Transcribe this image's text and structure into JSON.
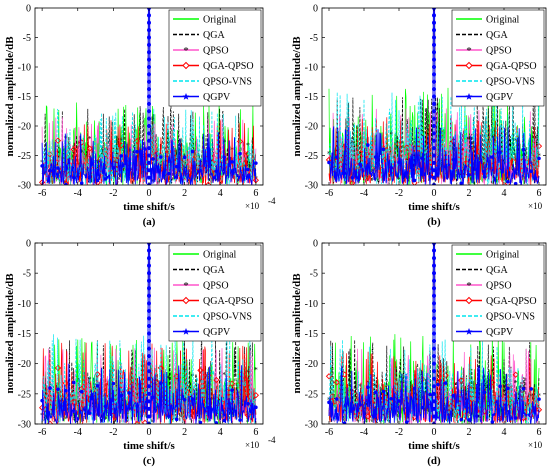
{
  "colors": {
    "Original": "#00ff00",
    "QGA": "#000000",
    "QPSO": "#ff55cc",
    "QGA-QPSO": "#ff0000",
    "QPSO-VNS": "#00e5ee",
    "QGPV": "#0000ff"
  },
  "chart_data": [
    {
      "type": "line",
      "subplot_label": "(a)",
      "xlabel": "time shift/s",
      "ylabel": "normalized amplitude/dB",
      "x_exponent_label": "×10",
      "x_exponent_power": "-4",
      "xlim": [
        -6.4,
        6.4
      ],
      "ylim": [
        -30,
        0
      ],
      "xticks": [
        -6,
        -4,
        -2,
        0,
        2,
        4,
        6
      ],
      "xticklabels": [
        "-6",
        "-4",
        "-2",
        "0",
        "2",
        "4",
        "6"
      ],
      "yticks": [
        -30,
        -25,
        -20,
        -15,
        -10,
        -5,
        0
      ],
      "yticklabels": [
        "-30",
        "-25",
        "-20",
        "-15",
        "-10",
        "-5",
        "0"
      ],
      "grid": false,
      "legend_position": "top-right",
      "series": [
        {
          "name": "Original",
          "peak": 0,
          "sidelobe_max": -16.0
        },
        {
          "name": "QGA",
          "peak": 0,
          "sidelobe_max": -16.5
        },
        {
          "name": "QPSO",
          "peak": 0,
          "sidelobe_max": -18.5
        },
        {
          "name": "QGA-QPSO",
          "peak": 0,
          "sidelobe_max": -19.0
        },
        {
          "name": "QPSO-VNS",
          "peak": 0,
          "sidelobe_max": -17.0
        },
        {
          "name": "QGPV",
          "peak": 0,
          "sidelobe_max": -21.0
        }
      ]
    },
    {
      "type": "line",
      "subplot_label": "(b)",
      "xlabel": "time shift/s",
      "ylabel": "normalized amplitude/dB",
      "x_exponent_label": "×10",
      "x_exponent_power": "-4",
      "xlim": [
        -6.4,
        6.4
      ],
      "ylim": [
        -30,
        0
      ],
      "xticks": [
        -6,
        -4,
        -2,
        0,
        2,
        4,
        6
      ],
      "xticklabels": [
        "-6",
        "-4",
        "-2",
        "0",
        "2",
        "4",
        "6"
      ],
      "yticks": [
        -30,
        -25,
        -20,
        -15,
        -10,
        -5,
        0
      ],
      "yticklabels": [
        "-30",
        "-25",
        "-20",
        "-15",
        "-10",
        "-5",
        "0"
      ],
      "grid": false,
      "legend_position": "top-right",
      "series": [
        {
          "name": "Original",
          "peak": 0,
          "sidelobe_max": -13.5
        },
        {
          "name": "QGA",
          "peak": 0,
          "sidelobe_max": -15.0
        },
        {
          "name": "QPSO",
          "peak": 0,
          "sidelobe_max": -17.0
        },
        {
          "name": "QGA-QPSO",
          "peak": 0,
          "sidelobe_max": -18.5
        },
        {
          "name": "QPSO-VNS",
          "peak": 0,
          "sidelobe_max": -14.0
        },
        {
          "name": "QGPV",
          "peak": 0,
          "sidelobe_max": -20.0
        }
      ]
    },
    {
      "type": "line",
      "subplot_label": "(c)",
      "xlabel": "time shift/s",
      "ylabel": "normalized amplitude/dB",
      "x_exponent_label": "×10",
      "x_exponent_power": "-4",
      "xlim": [
        -6.4,
        6.4
      ],
      "ylim": [
        -30,
        0
      ],
      "xticks": [
        -6,
        -4,
        -2,
        0,
        2,
        4,
        6
      ],
      "xticklabels": [
        "-6",
        "-4",
        "-2",
        "0",
        "2",
        "4",
        "6"
      ],
      "yticks": [
        -30,
        -25,
        -20,
        -15,
        -10,
        -5,
        0
      ],
      "yticklabels": [
        "-30",
        "-25",
        "-20",
        "-15",
        "-10",
        "-5",
        "0"
      ],
      "grid": false,
      "legend_position": "top-right",
      "series": [
        {
          "name": "Original",
          "peak": 0,
          "sidelobe_max": -15.5
        },
        {
          "name": "QGA",
          "peak": 0,
          "sidelobe_max": -16.0
        },
        {
          "name": "QPSO",
          "peak": 0,
          "sidelobe_max": -17.0
        },
        {
          "name": "QGA-QPSO",
          "peak": 0,
          "sidelobe_max": -16.5
        },
        {
          "name": "QPSO-VNS",
          "peak": 0,
          "sidelobe_max": -15.0
        },
        {
          "name": "QGPV",
          "peak": 0,
          "sidelobe_max": -20.0
        }
      ]
    },
    {
      "type": "line",
      "subplot_label": "(d)",
      "xlabel": "time shift/s",
      "ylabel": "normalized amplitude/dB",
      "x_exponent_label": "×10",
      "x_exponent_power": "-4",
      "xlim": [
        -6.4,
        6.4
      ],
      "ylim": [
        -30,
        0
      ],
      "xticks": [
        -6,
        -4,
        -2,
        0,
        2,
        4,
        6
      ],
      "xticklabels": [
        "-6",
        "-4",
        "-2",
        "0",
        "2",
        "4",
        "6"
      ],
      "yticks": [
        -30,
        -25,
        -20,
        -15,
        -10,
        -5,
        0
      ],
      "yticklabels": [
        "-30",
        "-25",
        "-20",
        "-15",
        "-10",
        "-5",
        "0"
      ],
      "grid": false,
      "legend_position": "top-right",
      "series": [
        {
          "name": "Original",
          "peak": 0,
          "sidelobe_max": -15.0
        },
        {
          "name": "QGA",
          "peak": 0,
          "sidelobe_max": -16.0
        },
        {
          "name": "QPSO",
          "peak": 0,
          "sidelobe_max": -17.5
        },
        {
          "name": "QGA-QPSO",
          "peak": 0,
          "sidelobe_max": -18.0
        },
        {
          "name": "QPSO-VNS",
          "peak": 0,
          "sidelobe_max": -16.0
        },
        {
          "name": "QGPV",
          "peak": 0,
          "sidelobe_max": -20.0
        }
      ]
    }
  ]
}
